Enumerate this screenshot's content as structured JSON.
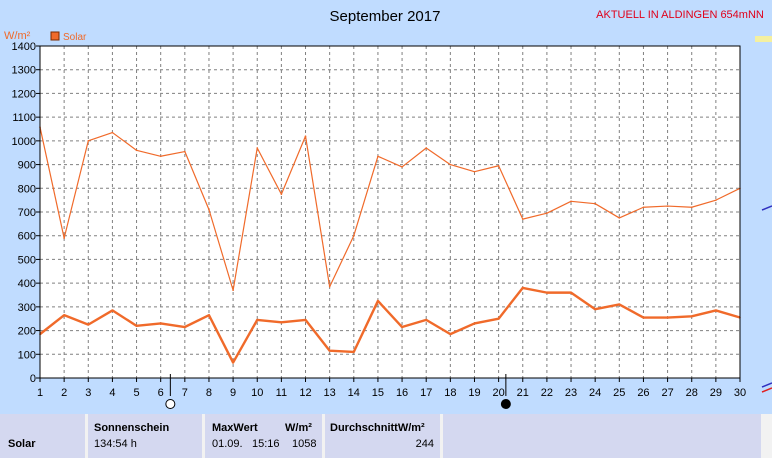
{
  "header": {
    "title": "September 2017",
    "station": "AKTUELL IN ALDINGEN 654mNN",
    "unit": "W/m²"
  },
  "legend": {
    "label": "Solar",
    "color": "#f06a2a"
  },
  "chart_data": {
    "type": "line",
    "title": "September 2017",
    "ylabel": "W/m²",
    "xlabel": "",
    "ylim": [
      0,
      1400
    ],
    "xlim": [
      1,
      30
    ],
    "grid": true,
    "legend_position": "top-left",
    "yticks": [
      0,
      100,
      200,
      300,
      400,
      500,
      600,
      700,
      800,
      900,
      1000,
      1100,
      1200,
      1300,
      1400
    ],
    "x": [
      1,
      2,
      3,
      4,
      5,
      6,
      7,
      8,
      9,
      10,
      11,
      12,
      13,
      14,
      15,
      16,
      17,
      18,
      19,
      20,
      21,
      22,
      23,
      24,
      25,
      26,
      27,
      28,
      29,
      30
    ],
    "series": [
      {
        "name": "Solar",
        "values": [
          1058,
          590,
          1000,
          1035,
          960,
          935,
          955,
          710,
          370,
          970,
          775,
          1020,
          385,
          600,
          935,
          890,
          970,
          900,
          870,
          895,
          670,
          695,
          745,
          735,
          675,
          720,
          725,
          720,
          750,
          800
        ],
        "color": "#f06a2a"
      },
      {
        "name": "Solar",
        "values": [
          185,
          265,
          225,
          285,
          220,
          230,
          215,
          265,
          65,
          245,
          235,
          245,
          115,
          110,
          325,
          215,
          245,
          185,
          230,
          250,
          380,
          360,
          360,
          290,
          310,
          255,
          255,
          260,
          285,
          255
        ],
        "color": "#f06a2a"
      }
    ],
    "moon_phases": [
      {
        "day": 6.4,
        "phase": "full"
      },
      {
        "day": 20.3,
        "phase": "new"
      }
    ]
  },
  "footer": {
    "row_label": "Solar",
    "sunshine": {
      "header": "Sonnenschein",
      "value": "134:54 h"
    },
    "max": {
      "header": "MaxWert",
      "unit": "W/m²",
      "date": "01.09.",
      "time": "15:16",
      "value": "1058"
    },
    "avg": {
      "header": "DurchschnittW/m²",
      "value": "244"
    }
  }
}
